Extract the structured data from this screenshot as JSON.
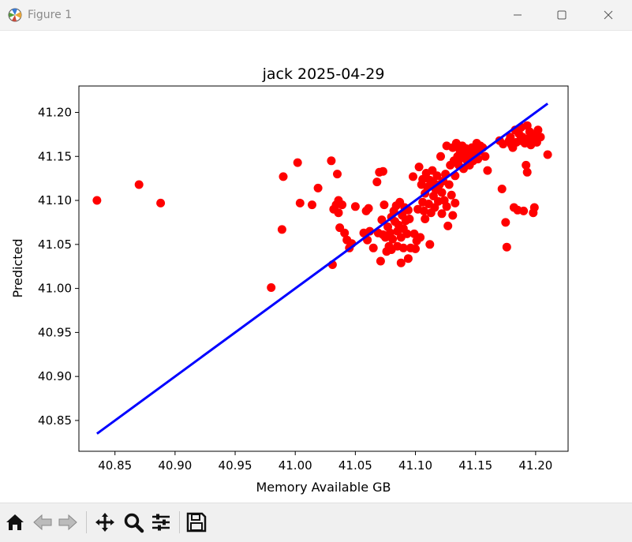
{
  "window": {
    "title": "Figure 1",
    "icons": [
      "matplotlib-icon",
      "minimize-icon",
      "maximize-icon",
      "close-icon"
    ]
  },
  "toolbar": {
    "icons": [
      "home-icon",
      "back-icon",
      "forward-icon",
      "pan-icon",
      "zoom-icon",
      "configure-subplots-icon",
      "save-icon"
    ]
  },
  "colors": {
    "points": "#ff0000",
    "fit_line": "#0000ff"
  },
  "chart_data": {
    "type": "scatter",
    "title": "jack 2025-04-29",
    "xlabel": "Memory Available GB",
    "ylabel": "Predicted",
    "xlim": [
      40.82,
      41.227
    ],
    "ylim": [
      40.815,
      41.23
    ],
    "xticks": [
      "40.85",
      "40.90",
      "40.95",
      "41.00",
      "41.05",
      "41.10",
      "41.15",
      "41.20"
    ],
    "yticks": [
      "40.85",
      "40.90",
      "40.95",
      "41.00",
      "41.05",
      "41.10",
      "41.15",
      "41.20"
    ],
    "grid": false,
    "series": [
      {
        "marker": "circle",
        "color": "#ff0000",
        "points": [
          [
            40.835,
            41.1
          ],
          [
            40.87,
            41.118
          ],
          [
            40.888,
            41.097
          ],
          [
            40.98,
            41.001
          ],
          [
            40.989,
            41.067
          ],
          [
            40.99,
            41.127
          ],
          [
            41.002,
            41.143
          ],
          [
            41.004,
            41.097
          ],
          [
            41.014,
            41.095
          ],
          [
            41.019,
            41.114
          ],
          [
            41.03,
            41.145
          ],
          [
            41.031,
            41.027
          ],
          [
            41.032,
            41.09
          ],
          [
            41.034,
            41.095
          ],
          [
            41.035,
            41.13
          ],
          [
            41.036,
            41.1
          ],
          [
            41.036,
            41.086
          ],
          [
            41.037,
            41.069
          ],
          [
            41.039,
            41.095
          ],
          [
            41.041,
            41.063
          ],
          [
            41.043,
            41.055
          ],
          [
            41.045,
            41.046
          ],
          [
            41.047,
            41.051
          ],
          [
            41.05,
            41.093
          ],
          [
            41.057,
            41.063
          ],
          [
            41.059,
            41.088
          ],
          [
            41.06,
            41.055
          ],
          [
            41.061,
            41.091
          ],
          [
            41.062,
            41.065
          ],
          [
            41.065,
            41.046
          ],
          [
            41.068,
            41.121
          ],
          [
            41.069,
            41.063
          ],
          [
            41.07,
            41.132
          ],
          [
            41.071,
            41.031
          ],
          [
            41.072,
            41.078
          ],
          [
            41.073,
            41.133
          ],
          [
            41.073,
            41.061
          ],
          [
            41.074,
            41.095
          ],
          [
            41.075,
            41.058
          ],
          [
            41.076,
            41.042
          ],
          [
            41.077,
            41.07
          ],
          [
            41.078,
            41.048
          ],
          [
            41.079,
            41.063
          ],
          [
            41.08,
            41.081
          ],
          [
            41.08,
            41.044
          ],
          [
            41.081,
            41.056
          ],
          [
            41.082,
            41.088
          ],
          [
            41.083,
            41.076
          ],
          [
            41.084,
            41.094
          ],
          [
            41.085,
            41.065
          ],
          [
            41.085,
            41.048
          ],
          [
            41.086,
            41.072
          ],
          [
            41.087,
            41.098
          ],
          [
            41.088,
            41.058
          ],
          [
            41.088,
            41.029
          ],
          [
            41.089,
            41.083
          ],
          [
            41.09,
            41.046
          ],
          [
            41.09,
            41.068
          ],
          [
            41.091,
            41.092
          ],
          [
            41.092,
            41.077
          ],
          [
            41.093,
            41.062
          ],
          [
            41.094,
            41.089
          ],
          [
            41.094,
            41.034
          ],
          [
            41.095,
            41.079
          ],
          [
            41.096,
            41.046
          ],
          [
            41.098,
            41.127
          ],
          [
            41.099,
            41.062
          ],
          [
            41.1,
            41.045
          ],
          [
            41.101,
            41.054
          ],
          [
            41.102,
            41.09
          ],
          [
            41.103,
            41.138
          ],
          [
            41.104,
            41.058
          ],
          [
            41.105,
            41.118
          ],
          [
            41.106,
            41.098
          ],
          [
            41.106,
            41.124
          ],
          [
            41.107,
            41.088
          ],
          [
            41.108,
            41.108
          ],
          [
            41.108,
            41.079
          ],
          [
            41.109,
            41.131
          ],
          [
            41.11,
            41.115
          ],
          [
            41.111,
            41.096
          ],
          [
            41.112,
            41.123
          ],
          [
            41.112,
            41.05
          ],
          [
            41.113,
            41.086
          ],
          [
            41.114,
            41.134
          ],
          [
            41.115,
            41.105
          ],
          [
            41.115,
            41.12
          ],
          [
            41.116,
            41.092
          ],
          [
            41.117,
            41.112
          ],
          [
            41.118,
            41.128
          ],
          [
            41.119,
            41.099
          ],
          [
            41.12,
            41.118
          ],
          [
            41.121,
            41.15
          ],
          [
            41.122,
            41.109
          ],
          [
            41.122,
            41.085
          ],
          [
            41.123,
            41.122
          ],
          [
            41.124,
            41.1
          ],
          [
            41.125,
            41.13
          ],
          [
            41.126,
            41.093
          ],
          [
            41.126,
            41.162
          ],
          [
            41.127,
            41.071
          ],
          [
            41.128,
            41.118
          ],
          [
            41.129,
            41.14
          ],
          [
            41.13,
            41.106
          ],
          [
            41.131,
            41.16
          ],
          [
            41.131,
            41.083
          ],
          [
            41.132,
            41.145
          ],
          [
            41.133,
            41.128
          ],
          [
            41.133,
            41.097
          ],
          [
            41.134,
            41.165
          ],
          [
            41.135,
            41.15
          ],
          [
            41.136,
            41.14
          ],
          [
            41.137,
            41.157
          ],
          [
            41.138,
            41.148
          ],
          [
            41.139,
            41.162
          ],
          [
            41.14,
            41.136
          ],
          [
            41.141,
            41.153
          ],
          [
            41.142,
            41.159
          ],
          [
            41.143,
            41.145
          ],
          [
            41.144,
            41.15
          ],
          [
            41.145,
            41.14
          ],
          [
            41.146,
            41.155
          ],
          [
            41.147,
            41.16
          ],
          [
            41.148,
            41.145
          ],
          [
            41.149,
            41.158
          ],
          [
            41.15,
            41.152
          ],
          [
            41.151,
            41.165
          ],
          [
            41.152,
            41.147
          ],
          [
            41.153,
            41.156
          ],
          [
            41.154,
            41.162
          ],
          [
            41.156,
            41.16
          ],
          [
            41.158,
            41.15
          ],
          [
            41.16,
            41.134
          ],
          [
            41.17,
            41.168
          ],
          [
            41.172,
            41.113
          ],
          [
            41.173,
            41.164
          ],
          [
            41.175,
            41.075
          ],
          [
            41.176,
            41.047
          ],
          [
            41.178,
            41.168
          ],
          [
            41.179,
            41.172
          ],
          [
            41.18,
            41.163
          ],
          [
            41.181,
            41.16
          ],
          [
            41.182,
            41.092
          ],
          [
            41.183,
            41.18
          ],
          [
            41.184,
            41.166
          ],
          [
            41.185,
            41.089
          ],
          [
            41.186,
            41.176
          ],
          [
            41.187,
            41.168
          ],
          [
            41.188,
            41.183
          ],
          [
            41.189,
            41.172
          ],
          [
            41.19,
            41.088
          ],
          [
            41.191,
            41.165
          ],
          [
            41.192,
            41.14
          ],
          [
            41.193,
            41.132
          ],
          [
            41.193,
            41.185
          ],
          [
            41.194,
            41.17
          ],
          [
            41.195,
            41.178
          ],
          [
            41.196,
            41.163
          ],
          [
            41.197,
            41.168
          ],
          [
            41.198,
            41.086
          ],
          [
            41.199,
            41.092
          ],
          [
            41.2,
            41.174
          ],
          [
            41.201,
            41.166
          ],
          [
            41.202,
            41.18
          ],
          [
            41.204,
            41.172
          ],
          [
            41.21,
            41.152
          ]
        ]
      },
      {
        "type": "line",
        "color": "#0000ff",
        "points": [
          [
            40.835,
            40.835
          ],
          [
            41.21,
            41.21
          ]
        ]
      }
    ]
  }
}
